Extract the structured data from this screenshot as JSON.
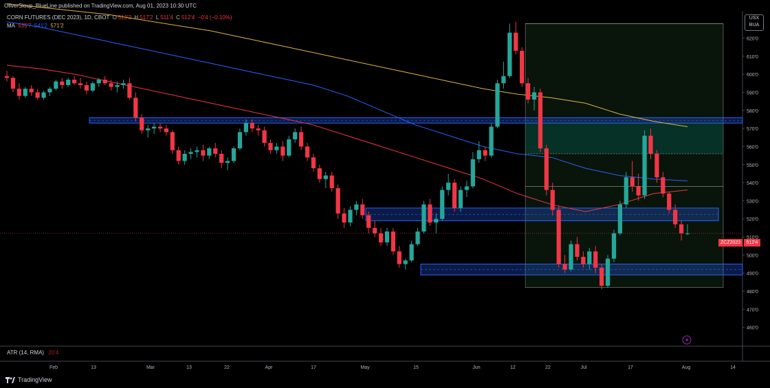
{
  "header": {
    "published": "OliverSloup_BlueLine published on TradingView.com, Aug 01, 2023 10:30 UTC"
  },
  "legend": {
    "symbol": "CORN FUTURES (DEC 2023), 1D, CBOT",
    "ohlc": [
      {
        "label": "O",
        "value": "513'2"
      },
      {
        "label": "H",
        "value": "517'2"
      },
      {
        "label": "L",
        "value": "511'4"
      },
      {
        "label": "C",
        "value": "512'4"
      }
    ],
    "change": "−0'4 (−0.10%)",
    "ma_label": "MA",
    "ma_values": [
      "535'7",
      "541'2",
      "571'2"
    ]
  },
  "unit_badge": {
    "line1": "USX",
    "line2": "BUA"
  },
  "last_price": {
    "symbol": "ZCZ2023",
    "price": "512'4"
  },
  "atr": {
    "label": "ATR (14, RMA)",
    "value": "20'4"
  },
  "brand": {
    "name": "TradingView"
  },
  "colors": {
    "up": "#26a69a",
    "down": "#f23645",
    "ma1": "#f23645",
    "ma2": "#2962ff",
    "ma3": "#e3b341",
    "zone": "#2962ff",
    "box": "#4caf50"
  },
  "chart_data": {
    "type": "candlestick",
    "y_range": [
      450,
      635
    ],
    "y_ticks": [
      460,
      470,
      480,
      490,
      500,
      510,
      520,
      530,
      540,
      550,
      560,
      570,
      580,
      590,
      600,
      610,
      620
    ],
    "y_tick_labels": [
      "460'0",
      "470'0",
      "480'0",
      "490'0",
      "500'0",
      "510'0",
      "520'0",
      "530'0",
      "540'0",
      "550'0",
      "560'0",
      "570'0",
      "580'0",
      "590'0",
      "600'0",
      "610'0",
      "620'0"
    ],
    "x_labels": [
      "Feb",
      "13",
      "Mar",
      "13",
      "22",
      "Apr",
      "17",
      "May",
      "15",
      "Jun",
      "12",
      "22",
      "Jul",
      "17",
      "Aug",
      "14"
    ],
    "candles": [
      [
        599,
        602,
        596,
        598
      ],
      [
        598,
        599,
        590,
        592
      ],
      [
        592,
        595,
        586,
        588
      ],
      [
        588,
        593,
        587,
        592
      ],
      [
        592,
        594,
        588,
        590
      ],
      [
        590,
        592,
        586,
        587
      ],
      [
        587,
        591,
        586,
        590
      ],
      [
        590,
        593,
        588,
        592
      ],
      [
        592,
        597,
        591,
        596
      ],
      [
        596,
        598,
        592,
        594
      ],
      [
        594,
        598,
        593,
        597
      ],
      [
        597,
        599,
        594,
        595
      ],
      [
        595,
        598,
        592,
        594
      ],
      [
        594,
        596,
        589,
        591
      ],
      [
        591,
        596,
        590,
        595
      ],
      [
        595,
        598,
        593,
        597
      ],
      [
        597,
        599,
        594,
        595
      ],
      [
        595,
        597,
        591,
        593
      ],
      [
        593,
        596,
        590,
        594
      ],
      [
        594,
        597,
        592,
        595
      ],
      [
        595,
        598,
        586,
        587
      ],
      [
        587,
        590,
        574,
        576
      ],
      [
        576,
        578,
        567,
        569
      ],
      [
        569,
        572,
        565,
        570
      ],
      [
        570,
        573,
        567,
        571
      ],
      [
        571,
        573,
        568,
        570
      ],
      [
        570,
        572,
        566,
        568
      ],
      [
        568,
        569,
        556,
        558
      ],
      [
        558,
        560,
        550,
        552
      ],
      [
        552,
        558,
        550,
        556
      ],
      [
        556,
        559,
        553,
        557
      ],
      [
        557,
        560,
        554,
        558
      ],
      [
        558,
        561,
        552,
        555
      ],
      [
        555,
        560,
        553,
        559
      ],
      [
        559,
        562,
        554,
        556
      ],
      [
        556,
        558,
        548,
        551
      ],
      [
        551,
        554,
        547,
        552
      ],
      [
        552,
        560,
        551,
        559
      ],
      [
        559,
        570,
        558,
        568
      ],
      [
        568,
        575,
        566,
        573
      ],
      [
        573,
        575,
        568,
        570
      ],
      [
        570,
        572,
        566,
        569
      ],
      [
        569,
        571,
        560,
        562
      ],
      [
        562,
        564,
        556,
        558
      ],
      [
        558,
        562,
        556,
        560
      ],
      [
        560,
        563,
        552,
        555
      ],
      [
        555,
        566,
        554,
        564
      ],
      [
        564,
        570,
        562,
        568
      ],
      [
        568,
        571,
        558,
        560
      ],
      [
        560,
        562,
        552,
        554
      ],
      [
        554,
        556,
        546,
        548
      ],
      [
        548,
        550,
        540,
        542
      ],
      [
        542,
        546,
        537,
        544
      ],
      [
        544,
        546,
        535,
        537
      ],
      [
        537,
        539,
        520,
        523
      ],
      [
        523,
        526,
        515,
        518
      ],
      [
        518,
        527,
        516,
        525
      ],
      [
        525,
        530,
        522,
        528
      ],
      [
        528,
        531,
        520,
        522
      ],
      [
        522,
        524,
        512,
        515
      ],
      [
        515,
        519,
        510,
        512
      ],
      [
        512,
        515,
        505,
        507
      ],
      [
        507,
        515,
        505,
        513
      ],
      [
        513,
        515,
        500,
        502
      ],
      [
        502,
        505,
        493,
        495
      ],
      [
        495,
        498,
        492,
        497
      ],
      [
        497,
        508,
        496,
        506
      ],
      [
        506,
        515,
        505,
        513
      ],
      [
        513,
        530,
        512,
        528
      ],
      [
        528,
        531,
        516,
        518
      ],
      [
        518,
        523,
        512,
        520
      ],
      [
        520,
        538,
        519,
        536
      ],
      [
        536,
        545,
        533,
        540
      ],
      [
        540,
        542,
        524,
        526
      ],
      [
        526,
        538,
        524,
        536
      ],
      [
        536,
        541,
        532,
        538
      ],
      [
        538,
        557,
        537,
        553
      ],
      [
        553,
        563,
        551,
        558
      ],
      [
        558,
        560,
        552,
        555
      ],
      [
        555,
        573,
        554,
        571
      ],
      [
        571,
        597,
        570,
        595
      ],
      [
        595,
        607,
        592,
        599
      ],
      [
        599,
        628,
        598,
        623
      ],
      [
        623,
        629,
        611,
        613
      ],
      [
        613,
        615,
        593,
        595
      ],
      [
        595,
        598,
        584,
        586
      ],
      [
        586,
        593,
        580,
        590
      ],
      [
        590,
        592,
        557,
        559
      ],
      [
        559,
        561,
        533,
        536
      ],
      [
        536,
        540,
        522,
        525
      ],
      [
        525,
        527,
        493,
        495
      ],
      [
        495,
        500,
        490,
        492
      ],
      [
        492,
        508,
        491,
        506
      ],
      [
        506,
        510,
        497,
        499
      ],
      [
        499,
        502,
        493,
        495
      ],
      [
        495,
        504,
        492,
        502
      ],
      [
        502,
        505,
        490,
        493
      ],
      [
        493,
        495,
        481,
        483
      ],
      [
        483,
        500,
        482,
        498
      ],
      [
        498,
        514,
        496,
        512
      ],
      [
        512,
        530,
        511,
        528
      ],
      [
        528,
        546,
        526,
        543
      ],
      [
        543,
        552,
        535,
        538
      ],
      [
        538,
        545,
        530,
        533
      ],
      [
        533,
        569,
        531,
        566
      ],
      [
        566,
        570,
        553,
        556
      ],
      [
        556,
        558,
        540,
        543
      ],
      [
        543,
        546,
        532,
        534
      ],
      [
        534,
        535,
        523,
        525
      ],
      [
        525,
        528,
        515,
        517
      ],
      [
        517,
        519,
        508,
        512
      ],
      [
        512,
        517,
        511,
        512
      ]
    ],
    "ma_red": [
      605,
      603,
      600,
      596,
      592,
      588,
      584,
      580,
      576,
      572,
      566,
      560,
      554,
      548,
      542,
      534,
      528,
      524,
      528,
      534,
      536
    ],
    "ma_blue": [
      629,
      626,
      622,
      618,
      614,
      610,
      606,
      602,
      598,
      594,
      588,
      580,
      572,
      566,
      560,
      556,
      554,
      548,
      544,
      542,
      541
    ],
    "ma_yellow": [
      639,
      637,
      635,
      633,
      630,
      627,
      624,
      620,
      616,
      612,
      608,
      604,
      600,
      596,
      592,
      589,
      587,
      584,
      578,
      574,
      571
    ],
    "zones": [
      [
        573,
        576
      ],
      [
        519,
        526
      ],
      [
        489,
        495
      ]
    ],
    "box": {
      "top": 628,
      "bottom": 482,
      "inner_top": 573,
      "mid": 556,
      "low_line": 538
    }
  }
}
